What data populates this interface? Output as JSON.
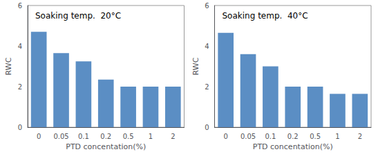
{
  "chart_data": [
    {
      "type": "bar",
      "title": "Soaking temp.  20°C",
      "categories": [
        "0",
        "0.05",
        "0.1",
        "0.2",
        "0.5",
        "1",
        "2"
      ],
      "values": [
        4.7,
        3.65,
        3.25,
        2.35,
        2.0,
        2.0,
        2.0
      ],
      "color": "#5b8ec4",
      "xlabel": "PTD concentation(%)",
      "ylabel": "RWC",
      "ylim": [
        0,
        6
      ],
      "yticks": [
        0,
        2,
        4,
        6
      ],
      "grid": false
    },
    {
      "type": "bar",
      "title": "Soaking temp.  40°C",
      "categories": [
        "0",
        "0.05",
        "0.1",
        "0.2",
        "0.5",
        "1",
        "2"
      ],
      "values": [
        4.65,
        3.6,
        3.0,
        2.0,
        2.0,
        1.65,
        1.65
      ],
      "color": "#5b8ec4",
      "xlabel": "PTD concentation(%)",
      "ylabel": "RWC",
      "ylim": [
        0,
        6
      ],
      "yticks": [
        0,
        2,
        4,
        6
      ],
      "grid": false
    }
  ]
}
